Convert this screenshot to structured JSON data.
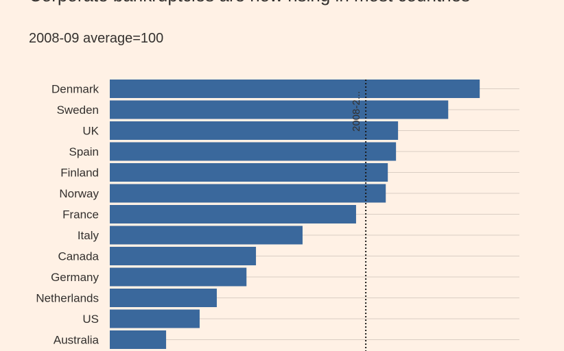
{
  "chart_data": {
    "type": "bar",
    "orientation": "horizontal",
    "title": "Corporate bankruptcies are now rising in most countries",
    "subtitle": "2008-09 average=100",
    "categories": [
      "Denmark",
      "Sweden",
      "UK",
      "Spain",
      "Finland",
      "Norway",
      "France",
      "Italy",
      "Canada",
      "Germany",
      "Netherlands",
      "US",
      "Australia"
    ],
    "values": [
      144.5,
      132.2,
      112.6,
      111.8,
      108.6,
      107.8,
      96.2,
      75.3,
      57.1,
      53.4,
      41.8,
      35.1,
      22.0
    ],
    "color": "#3a689c",
    "xlim": [
      0,
      160
    ],
    "reference_line": {
      "value": 100,
      "label": "2008-2..."
    },
    "grid": true
  }
}
